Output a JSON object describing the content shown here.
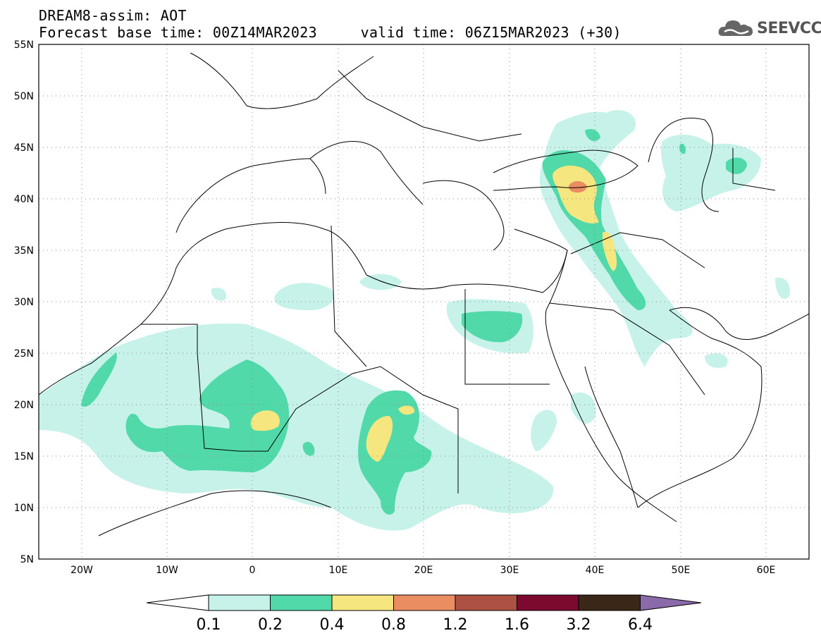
{
  "header": {
    "line1": "DREAM8-assim: AOT",
    "line2": "Forecast base time: 00Z14MAR2023     valid time: 06Z15MAR2023 (+30)",
    "logo_text": "SEEVCCC"
  },
  "map": {
    "lon_range": [
      -25,
      65
    ],
    "lat_range": [
      5,
      55
    ],
    "lat_labels": [
      "55N",
      "50N",
      "45N",
      "40N",
      "35N",
      "30N",
      "25N",
      "20N",
      "15N",
      "10N",
      "5N"
    ],
    "lon_labels": [
      "20W",
      "10W",
      "0",
      "10E",
      "20E",
      "30E",
      "40E",
      "50E",
      "60E"
    ]
  },
  "colorbar": {
    "labels": [
      "0.1",
      "0.2",
      "0.4",
      "0.8",
      "1.2",
      "1.6",
      "3.2",
      "6.4"
    ],
    "colors": [
      "#ffffff",
      "#c6f2ea",
      "#52d9a9",
      "#f5e680",
      "#ea8e61",
      "#ad5142",
      "#7b0a2e",
      "#3b2718",
      "#8a6aa8"
    ]
  }
}
